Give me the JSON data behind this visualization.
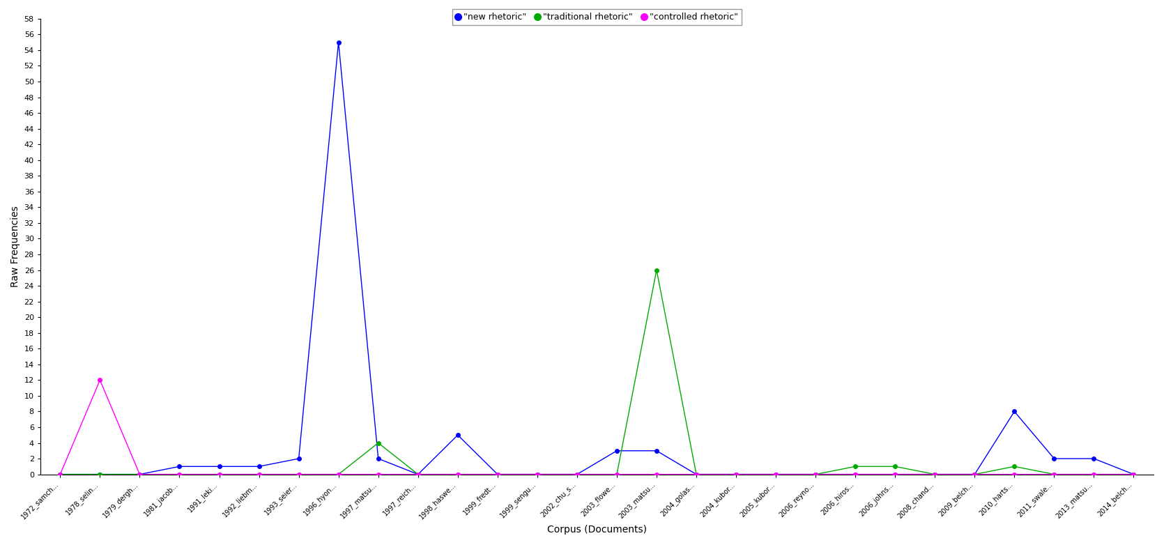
{
  "xlabel": "Corpus (Documents)",
  "ylabel": "Raw Frequencies",
  "legend_labels": [
    "\"new rhetoric\"",
    "\"traditional rhetoric\"",
    "\"controlled rhetoric\""
  ],
  "x_labels": [
    "1972_samch...",
    "1978_selin...",
    "1979_dergh...",
    "1981_jacob...",
    "1991_leki...",
    "1992_liebm...",
    "1993_seier...",
    "1996_hyon...",
    "1997_matsu...",
    "1997_reich...",
    "1998_haswe...",
    "1999_fredt...",
    "1999_sengu...",
    "2002_chu_s...",
    "2003_flowe...",
    "2003_matsu...",
    "2004_golas...",
    "2004_kubor...",
    "2005_kubor...",
    "2006_reyno...",
    "2006_hiros...",
    "2006_johns...",
    "2008_chand...",
    "2009_belch...",
    "2010_harts...",
    "2011_swale...",
    "2013_matsu...",
    "2014_belch..."
  ],
  "new_rhetoric": [
    0,
    0,
    0,
    1,
    1,
    1,
    2,
    55,
    2,
    0,
    5,
    0,
    0,
    0,
    3,
    3,
    0,
    0,
    0,
    0,
    0,
    0,
    0,
    0,
    8,
    2,
    2,
    0
  ],
  "traditional_rhetoric": [
    0,
    0,
    0,
    0,
    0,
    0,
    0,
    0,
    4,
    0,
    0,
    0,
    0,
    0,
    0,
    26,
    0,
    0,
    0,
    0,
    1,
    1,
    0,
    0,
    1,
    0,
    0,
    0
  ],
  "controlled_rhetoric": [
    0,
    12,
    0,
    0,
    0,
    0,
    0,
    0,
    0,
    0,
    0,
    0,
    0,
    0,
    0,
    0,
    0,
    0,
    0,
    0,
    0,
    0,
    0,
    0,
    0,
    0,
    0,
    0
  ],
  "ylim": [
    0,
    58
  ],
  "figsize": [
    16.7,
    7.82
  ],
  "dpi": 100,
  "new_rhetoric_color": "#0000ff",
  "traditional_rhetoric_color": "#00aa00",
  "controlled_rhetoric_color": "#ff00ff",
  "markersize": 4,
  "linewidth": 1.0
}
